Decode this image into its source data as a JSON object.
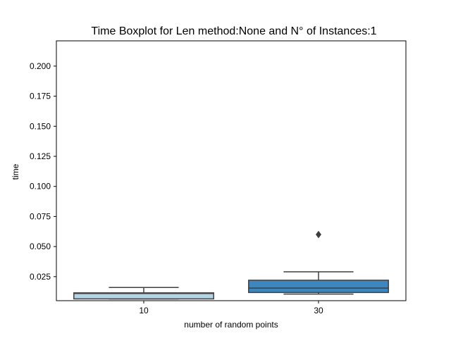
{
  "chart_data": {
    "type": "box",
    "title": "Time Boxplot for Len method:None and N° of Instances:1",
    "xlabel": "number of random points",
    "ylabel": "time",
    "categories": [
      "10",
      "30"
    ],
    "ylim": [
      0.005,
      0.221
    ],
    "yticks": [
      0.025,
      0.05,
      0.075,
      0.1,
      0.125,
      0.15,
      0.175,
      0.2
    ],
    "ytick_labels": [
      "0.025",
      "0.050",
      "0.075",
      "0.100",
      "0.125",
      "0.150",
      "0.175",
      "0.200"
    ],
    "boxes": [
      {
        "category": "10",
        "whisker_low": 0.0065,
        "q1": 0.0065,
        "median": 0.011,
        "q3": 0.0115,
        "whisker_high": 0.016,
        "outliers": [],
        "color": "#b4d4e6"
      },
      {
        "category": "30",
        "whisker_low": 0.0105,
        "q1": 0.0118,
        "median": 0.0155,
        "q3": 0.022,
        "whisker_high": 0.029,
        "outliers": [
          0.06
        ],
        "color": "#3d87c0"
      }
    ],
    "grid": false,
    "edge_color": "#3f3f3f"
  }
}
